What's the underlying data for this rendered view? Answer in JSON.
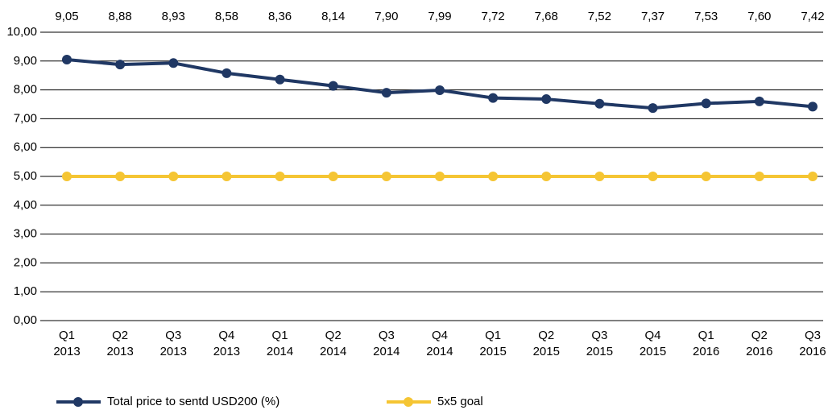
{
  "chart_data": {
    "type": "line",
    "categories": [
      "Q1 2013",
      "Q2 2013",
      "Q3 2013",
      "Q4 2013",
      "Q1 2014",
      "Q2 2014",
      "Q3 2014",
      "Q4 2014",
      "Q1 2015",
      "Q2 2015",
      "Q3 2015",
      "Q4 2015",
      "Q1 2016",
      "Q2 2016",
      "Q3 2016"
    ],
    "series": [
      {
        "name": "Total price to sentd USD200 (%)",
        "color": "#203864",
        "values": [
          9.05,
          8.88,
          8.93,
          8.58,
          8.36,
          8.14,
          7.9,
          7.99,
          7.72,
          7.68,
          7.52,
          7.37,
          7.53,
          7.6,
          7.42
        ],
        "value_labels": [
          "9,05",
          "8,88",
          "8,93",
          "8,58",
          "8,36",
          "8,14",
          "7,90",
          "7,99",
          "7,72",
          "7,68",
          "7,52",
          "7,37",
          "7,53",
          "7,60",
          "7,42"
        ]
      },
      {
        "name": "5x5 goal",
        "color": "#f5c533",
        "values": [
          5,
          5,
          5,
          5,
          5,
          5,
          5,
          5,
          5,
          5,
          5,
          5,
          5,
          5,
          5
        ]
      }
    ],
    "ylim": [
      0,
      10
    ],
    "yticks": [
      {
        "value": 0,
        "label": "0,00"
      },
      {
        "value": 1,
        "label": "1,00"
      },
      {
        "value": 2,
        "label": "2,00"
      },
      {
        "value": 3,
        "label": "3,00"
      },
      {
        "value": 4,
        "label": "4,00"
      },
      {
        "value": 5,
        "label": "5,00"
      },
      {
        "value": 6,
        "label": "6,00"
      },
      {
        "value": 7,
        "label": "7,00"
      },
      {
        "value": 8,
        "label": "8,00"
      },
      {
        "value": 9,
        "label": "9,00"
      },
      {
        "value": 10,
        "label": "10,00"
      }
    ],
    "grid": true,
    "legend": "bottom"
  }
}
